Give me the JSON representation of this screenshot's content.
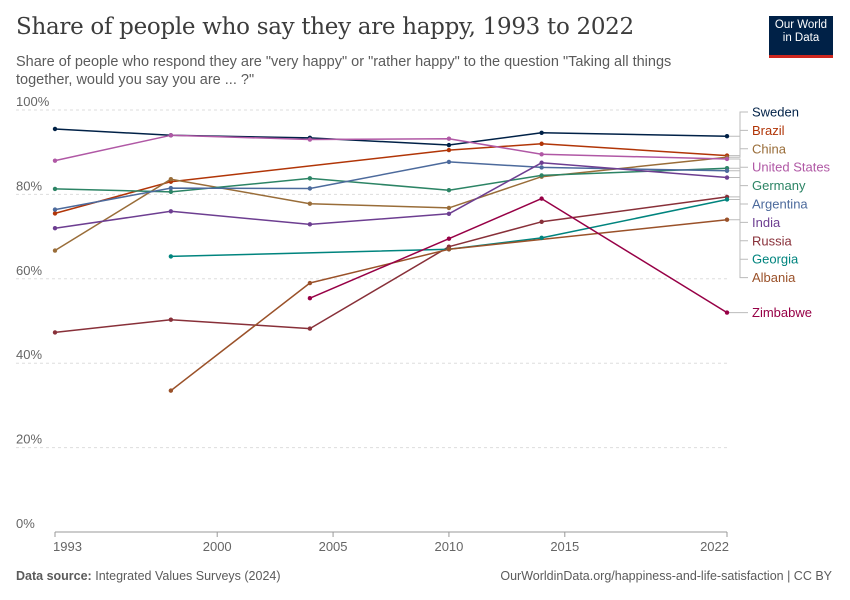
{
  "header": {
    "title": "Share of people who say they are happy, 1993 to 2022",
    "subtitle": "Share of people who respond they are \"very happy\" or \"rather happy\" to the question \"Taking all things together, would you say you are ... ?\""
  },
  "logo": {
    "line1": "Our World",
    "line2": "in Data",
    "bg_color": "#002147",
    "accent_color": "#ce261e"
  },
  "footer": {
    "source_label": "Data source:",
    "source_text": "Integrated Values Surveys (2024)",
    "right_text": "OurWorldinData.org/happiness-and-life-satisfaction | CC BY"
  },
  "chart_data": {
    "type": "line",
    "xlim": [
      1993,
      2022
    ],
    "ylim": [
      0,
      100
    ],
    "x_ticks": [
      1993,
      2000,
      2005,
      2010,
      2015,
      2022
    ],
    "x_tick_labels": [
      "1993",
      "2000",
      "2005",
      "2010",
      "2015",
      "2022"
    ],
    "y_ticks": [
      0,
      20,
      40,
      60,
      80,
      100
    ],
    "y_tick_labels": [
      "0%",
      "20%",
      "40%",
      "60%",
      "80%",
      "100%"
    ],
    "grid": "horizontal",
    "legend": "right",
    "series": [
      {
        "name": "Sweden",
        "color": "#002147",
        "points": [
          [
            1993,
            95.5
          ],
          [
            1998,
            94
          ],
          [
            2004,
            93.4
          ],
          [
            2010,
            91.7
          ],
          [
            2014,
            94.6
          ],
          [
            2022,
            93.8
          ]
        ]
      },
      {
        "name": "Brazil",
        "color": "#b13507",
        "points": [
          [
            1993,
            75.5
          ],
          [
            1998,
            83
          ],
          [
            2010,
            90.5
          ],
          [
            2014,
            92
          ],
          [
            2022,
            89.2
          ]
        ]
      },
      {
        "name": "China",
        "color": "#996d39",
        "points": [
          [
            1993,
            66.7
          ],
          [
            1998,
            83.6
          ],
          [
            2004,
            77.8
          ],
          [
            2010,
            76.8
          ],
          [
            2014,
            84.2
          ],
          [
            2022,
            88.8
          ]
        ]
      },
      {
        "name": "United States",
        "color": "#b058a5",
        "points": [
          [
            1993,
            88
          ],
          [
            1998,
            94
          ],
          [
            2004,
            93
          ],
          [
            2010,
            93.2
          ],
          [
            2014,
            89.5
          ],
          [
            2022,
            88.4
          ]
        ]
      },
      {
        "name": "Germany",
        "color": "#2c8465",
        "points": [
          [
            1993,
            81.3
          ],
          [
            1998,
            80.6
          ],
          [
            2004,
            83.8
          ],
          [
            2010,
            81
          ],
          [
            2014,
            84.5
          ],
          [
            2022,
            86.2
          ]
        ]
      },
      {
        "name": "Argentina",
        "color": "#4c6a9c",
        "points": [
          [
            1993,
            76.4
          ],
          [
            1998,
            81.5
          ],
          [
            2004,
            81.4
          ],
          [
            2010,
            87.7
          ],
          [
            2014,
            86.4
          ],
          [
            2022,
            85.6
          ]
        ]
      },
      {
        "name": "India",
        "color": "#6d3e91",
        "points": [
          [
            1993,
            72
          ],
          [
            1998,
            76
          ],
          [
            2004,
            72.9
          ],
          [
            2010,
            75.4
          ],
          [
            2014,
            87.5
          ],
          [
            2022,
            84
          ]
        ]
      },
      {
        "name": "Russia",
        "color": "#883039",
        "points": [
          [
            1993,
            47.3
          ],
          [
            1998,
            50.3
          ],
          [
            2004,
            48.2
          ],
          [
            2010,
            67.6
          ],
          [
            2014,
            73.5
          ],
          [
            2022,
            79.4
          ]
        ]
      },
      {
        "name": "Georgia",
        "color": "#00847e",
        "points": [
          [
            1998,
            65.3
          ],
          [
            2010,
            67
          ],
          [
            2014,
            69.7
          ],
          [
            2022,
            78.8
          ]
        ]
      },
      {
        "name": "Albania",
        "color": "#a2559c",
        "line_color": "#9a5129",
        "points": [
          [
            1998,
            33.5
          ],
          [
            2004,
            59
          ],
          [
            2010,
            67
          ],
          [
            2022,
            74
          ]
        ]
      },
      {
        "name": "Zimbabwe",
        "color": "#970046",
        "points": [
          [
            2004,
            55.4
          ],
          [
            2010,
            69.5
          ],
          [
            2014,
            79
          ],
          [
            2022,
            52
          ]
        ]
      }
    ]
  }
}
